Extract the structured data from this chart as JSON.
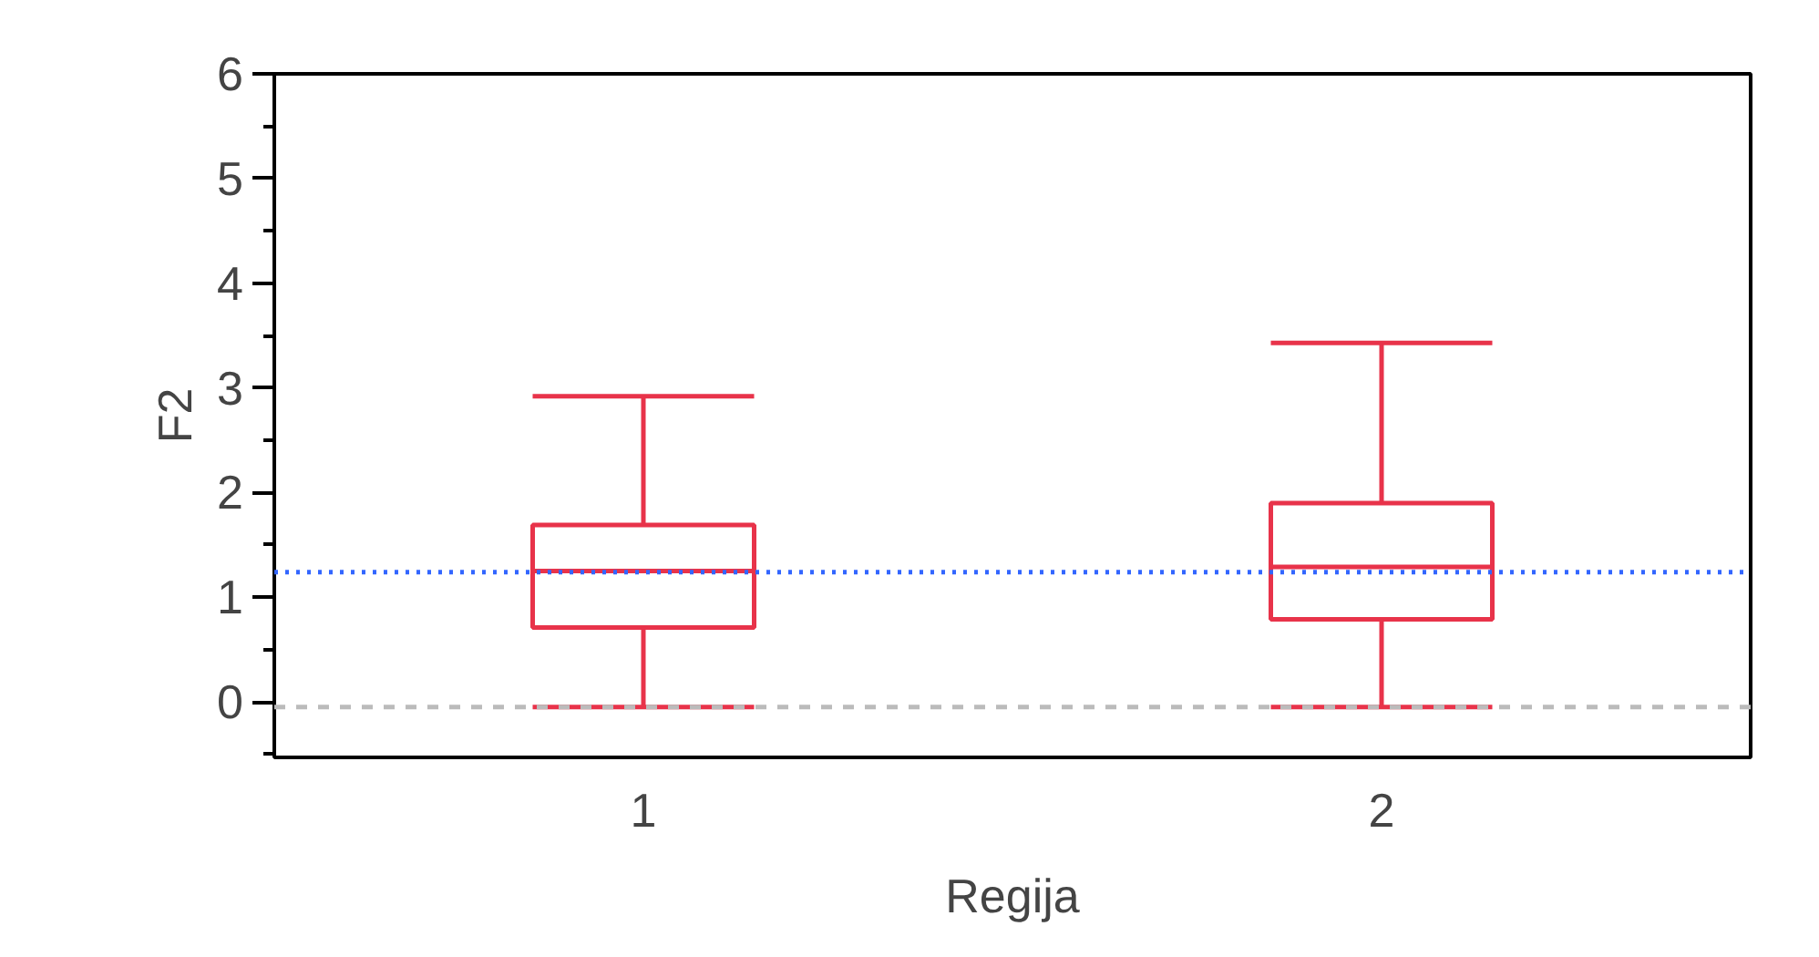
{
  "chart_data": {
    "type": "box",
    "xlabel": "Regija",
    "ylabel": "F2",
    "categories": [
      "1",
      "2"
    ],
    "color": "#e8334a",
    "boxes": [
      {
        "low": -0.05,
        "q1": 0.71,
        "median": 1.25,
        "q3": 1.69,
        "high": 2.92
      },
      {
        "low": -0.05,
        "q1": 0.79,
        "median": 1.29,
        "q3": 1.9,
        "high": 3.43
      }
    ],
    "ylim": [
      -0.53,
      6
    ],
    "yticks": [
      {
        "value": -0.5,
        "label": null
      },
      0,
      {
        "value": 0.5,
        "label": null
      },
      1,
      {
        "value": 1.5,
        "label": null
      },
      2,
      {
        "value": 2.5,
        "label": null
      },
      3,
      {
        "value": 3.5,
        "label": null
      },
      4,
      {
        "value": 4.5,
        "label": null
      },
      5,
      {
        "value": 5.5,
        "label": null
      },
      6
    ],
    "ref_lines": [
      {
        "axis": "y",
        "value": 1.24,
        "label": null,
        "color": "#3366ff",
        "line_style": "dotted"
      },
      {
        "axis": "y",
        "value": -0.05,
        "label": null,
        "color": "#bbbbbb",
        "line_style": "dashed"
      }
    ],
    "grid": false
  }
}
